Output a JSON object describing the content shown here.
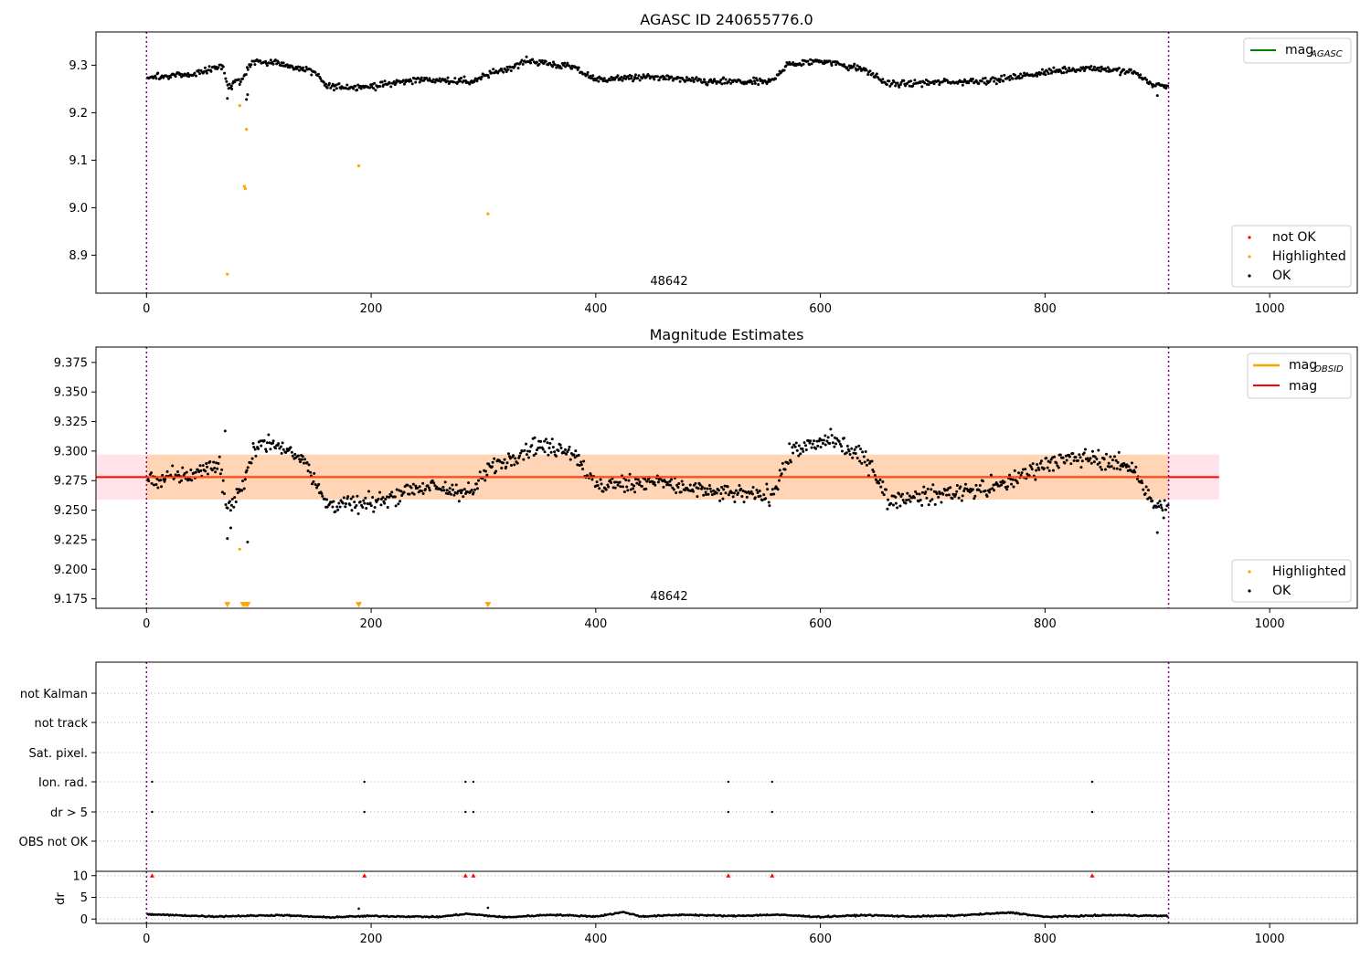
{
  "chart_data": [
    {
      "type": "scatter",
      "title": "AGASC ID 240655776.0",
      "xlim": [
        -45,
        1078
      ],
      "ylim": [
        8.82,
        9.37
      ],
      "xticks": [
        "0",
        "200",
        "400",
        "600",
        "800",
        "1000"
      ],
      "xtick_values": [
        0,
        200,
        400,
        600,
        800,
        1000
      ],
      "yticks": [
        "8.9",
        "9.0",
        "9.1",
        "9.2",
        "9.3"
      ],
      "ytick_values": [
        8.9,
        9.0,
        9.1,
        9.2,
        9.3
      ],
      "vlines": [
        0,
        910
      ],
      "annotation": "48642",
      "annotation_x": 455,
      "legend_top": {
        "label": "mag",
        "subscript": "AGASC",
        "color": "#008000"
      },
      "legend_bottom": [
        {
          "label": "not OK",
          "color": "#ff0000"
        },
        {
          "label": "Highlighted",
          "color": "#ffa500"
        },
        {
          "label": "OK",
          "color": "#000000"
        }
      ],
      "series": [
        {
          "name": "Highlighted",
          "color": "#ffa500",
          "marker": "dot",
          "points": [
            [
              72,
              8.86
            ],
            [
              83,
              9.215
            ],
            [
              87,
              9.045
            ],
            [
              88,
              9.04
            ],
            [
              89,
              9.165
            ],
            [
              189,
              9.088
            ],
            [
              304,
              8.987
            ]
          ]
        }
      ],
      "ok_series_trend": [
        [
          0,
          9.275
        ],
        [
          40,
          9.28
        ],
        [
          68,
          9.3
        ],
        [
          72,
          9.255
        ],
        [
          85,
          9.27
        ],
        [
          95,
          9.31
        ],
        [
          115,
          9.305
        ],
        [
          150,
          9.285
        ],
        [
          160,
          9.255
        ],
        [
          200,
          9.255
        ],
        [
          240,
          9.27
        ],
        [
          290,
          9.265
        ],
        [
          305,
          9.28
        ],
        [
          340,
          9.31
        ],
        [
          380,
          9.295
        ],
        [
          400,
          9.27
        ],
        [
          450,
          9.275
        ],
        [
          500,
          9.265
        ],
        [
          555,
          9.265
        ],
        [
          570,
          9.3
        ],
        [
          600,
          9.31
        ],
        [
          640,
          9.29
        ],
        [
          660,
          9.26
        ],
        [
          720,
          9.265
        ],
        [
          760,
          9.27
        ],
        [
          800,
          9.285
        ],
        [
          840,
          9.295
        ],
        [
          880,
          9.285
        ],
        [
          895,
          9.26
        ],
        [
          910,
          9.255
        ]
      ]
    },
    {
      "type": "scatter",
      "title": "Magnitude Estimates",
      "xlim": [
        -45,
        1078
      ],
      "ylim": [
        9.167,
        9.388
      ],
      "xticks": [
        "0",
        "200",
        "400",
        "600",
        "800",
        "1000"
      ],
      "xtick_values": [
        0,
        200,
        400,
        600,
        800,
        1000
      ],
      "yticks": [
        "9.175",
        "9.200",
        "9.225",
        "9.250",
        "9.275",
        "9.300",
        "9.325",
        "9.350",
        "9.375"
      ],
      "ytick_values": [
        9.175,
        9.2,
        9.225,
        9.25,
        9.275,
        9.3,
        9.325,
        9.35,
        9.375
      ],
      "vlines": [
        0,
        910
      ],
      "annotation": "48642",
      "annotation_x": 455,
      "mag_line": {
        "value": 9.278,
        "color": "#ff0000"
      },
      "mag_band": {
        "low": 9.259,
        "high": 9.297,
        "x_end": 955
      },
      "legend_top": [
        {
          "label": "mag",
          "subscript": "OBSID",
          "color": "#ffa500"
        },
        {
          "label": "mag",
          "color": "#ff0000"
        }
      ],
      "legend_bottom": [
        {
          "label": "Highlighted",
          "color": "#ffa500"
        },
        {
          "label": "OK",
          "color": "#000000"
        }
      ],
      "series": [
        {
          "name": "Highlighted",
          "color": "#ffa500",
          "marker": "dot",
          "points": [
            [
              83,
              9.217
            ]
          ]
        },
        {
          "name": "Highlighted",
          "color": "#ffa500",
          "marker": "triangle-down",
          "points": [
            [
              72,
              9.17
            ],
            [
              86,
              9.17
            ],
            [
              88,
              9.17
            ],
            [
              90,
              9.17
            ],
            [
              189,
              9.17
            ],
            [
              304,
              9.17
            ]
          ]
        }
      ],
      "ok_series_trend": [
        [
          0,
          9.275
        ],
        [
          40,
          9.28
        ],
        [
          65,
          9.29
        ],
        [
          72,
          9.25
        ],
        [
          85,
          9.27
        ],
        [
          100,
          9.31
        ],
        [
          140,
          9.295
        ],
        [
          160,
          9.255
        ],
        [
          200,
          9.255
        ],
        [
          240,
          9.27
        ],
        [
          290,
          9.265
        ],
        [
          305,
          9.285
        ],
        [
          345,
          9.305
        ],
        [
          380,
          9.3
        ],
        [
          400,
          9.27
        ],
        [
          450,
          9.275
        ],
        [
          500,
          9.265
        ],
        [
          555,
          9.262
        ],
        [
          575,
          9.3
        ],
        [
          610,
          9.31
        ],
        [
          645,
          9.29
        ],
        [
          660,
          9.258
        ],
        [
          720,
          9.265
        ],
        [
          760,
          9.27
        ],
        [
          800,
          9.29
        ],
        [
          840,
          9.295
        ],
        [
          880,
          9.285
        ],
        [
          895,
          9.255
        ],
        [
          910,
          9.25
        ]
      ],
      "extra_ok_points": [
        [
          72,
          9.226
        ],
        [
          75,
          9.235
        ],
        [
          90,
          9.223
        ],
        [
          900,
          9.231
        ],
        [
          70,
          9.317
        ]
      ]
    },
    {
      "type": "scatter",
      "title": "",
      "xlim": [
        -45,
        1078
      ],
      "categories": [
        "not Kalman",
        "not track",
        "Sat. pixel.",
        "Ion. rad.",
        "dr > 5",
        "OBS not OK"
      ],
      "vlines": [
        0,
        910
      ],
      "flag_points": {
        "Ion. rad.": [
          5,
          194,
          284,
          291,
          518,
          557,
          842
        ],
        "dr > 5": [
          5,
          194,
          284,
          291,
          518,
          557,
          842
        ]
      }
    },
    {
      "type": "scatter",
      "title": "",
      "xlim": [
        -45,
        1078
      ],
      "ylim": [
        -1,
        11
      ],
      "ylabel": "dr",
      "xticks": [
        "0",
        "200",
        "400",
        "600",
        "800",
        "1000"
      ],
      "xtick_values": [
        0,
        200,
        400,
        600,
        800,
        1000
      ],
      "yticks": [
        "0",
        "5",
        "10"
      ],
      "ytick_values": [
        0,
        5,
        10
      ],
      "vlines": [
        0,
        910
      ],
      "clipped_markers": {
        "color": "#ff0000",
        "marker": "triangle-up",
        "x": [
          5,
          194,
          284,
          291,
          518,
          557,
          842
        ],
        "y": 10
      },
      "outliers": [
        [
          189,
          2.4
        ],
        [
          304,
          2.6
        ]
      ],
      "dr_trend": [
        [
          0,
          1.1
        ],
        [
          60,
          0.6
        ],
        [
          120,
          0.9
        ],
        [
          160,
          0.4
        ],
        [
          200,
          0.7
        ],
        [
          260,
          0.5
        ],
        [
          285,
          1.2
        ],
        [
          320,
          0.4
        ],
        [
          360,
          1.0
        ],
        [
          400,
          0.6
        ],
        [
          425,
          1.6
        ],
        [
          440,
          0.6
        ],
        [
          480,
          1.0
        ],
        [
          520,
          0.7
        ],
        [
          560,
          1.0
        ],
        [
          600,
          0.5
        ],
        [
          640,
          0.9
        ],
        [
          680,
          0.6
        ],
        [
          720,
          0.8
        ],
        [
          770,
          1.5
        ],
        [
          800,
          0.5
        ],
        [
          860,
          0.9
        ],
        [
          910,
          0.7
        ]
      ]
    }
  ]
}
